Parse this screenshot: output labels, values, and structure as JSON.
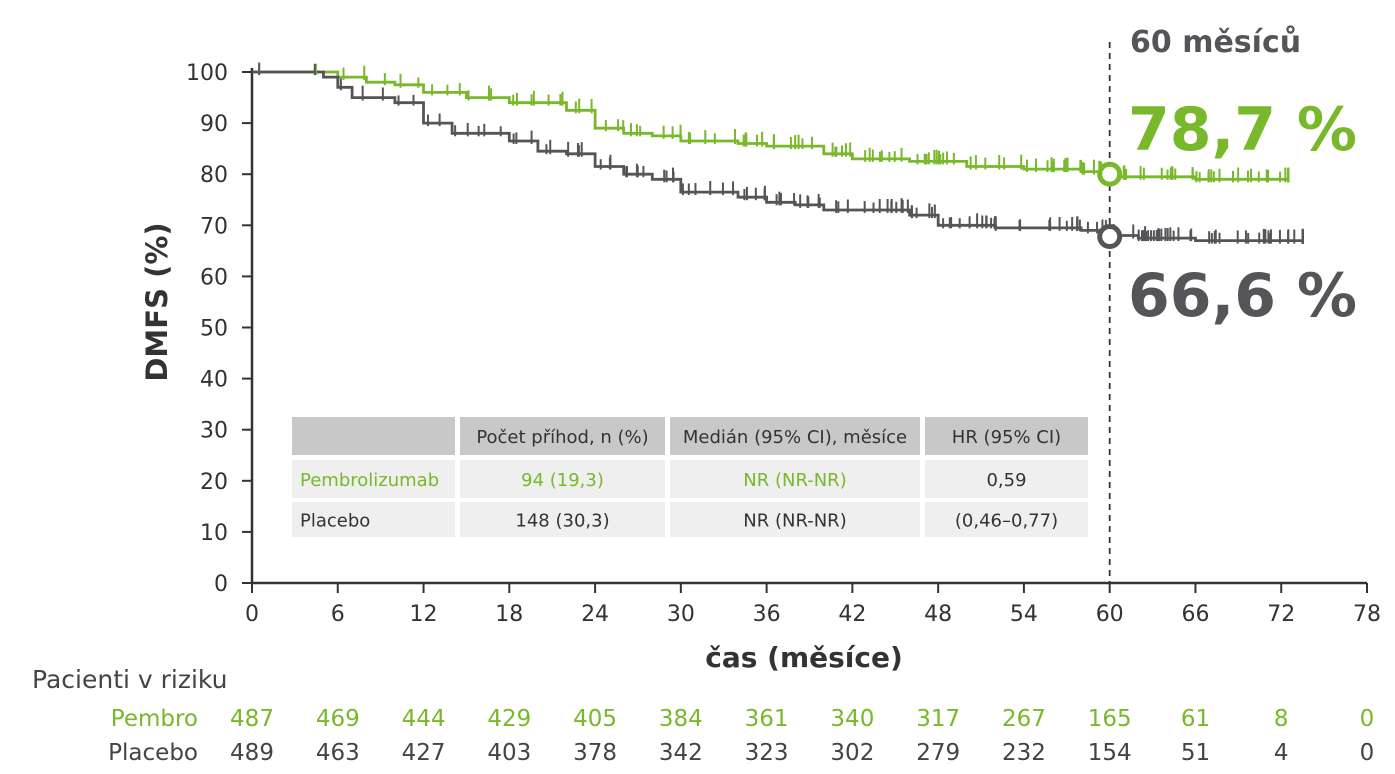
{
  "colors": {
    "pembro": "#78b82a",
    "placebo": "#555559",
    "axis": "#333333",
    "table_header": "#c8c8c8",
    "table_cell": "#efefef"
  },
  "chart_data": {
    "type": "line",
    "title": "",
    "xlabel": "čas (měsíce)",
    "ylabel": "DMFS (%)",
    "xlim": [
      0,
      78
    ],
    "ylim": [
      0,
      100
    ],
    "xticks": [
      0,
      6,
      12,
      18,
      24,
      30,
      36,
      42,
      48,
      54,
      60,
      66,
      72,
      78
    ],
    "yticks": [
      0,
      10,
      20,
      30,
      40,
      50,
      60,
      70,
      80,
      90,
      100
    ],
    "series": [
      {
        "name": "Pembrolizumab",
        "x": [
          0,
          3,
          6,
          8,
          10,
          12,
          15,
          18,
          22,
          24,
          26,
          28,
          30,
          34,
          36,
          40,
          42,
          46,
          48,
          50,
          54,
          58,
          60,
          66,
          72,
          72.5
        ],
        "y": [
          100,
          100,
          99,
          98,
          97.5,
          96,
          95,
          94,
          92.5,
          89,
          88,
          87.5,
          86.5,
          86,
          85.5,
          84,
          83,
          82.5,
          82.5,
          81.5,
          81,
          80.5,
          79.5,
          79,
          79,
          79
        ]
      },
      {
        "name": "Placebo",
        "x": [
          0,
          3,
          5,
          6,
          7,
          10,
          12,
          14,
          18,
          20,
          22,
          24,
          26,
          28,
          30,
          34,
          36,
          38,
          40,
          42,
          46,
          48,
          52,
          58,
          60,
          62,
          66,
          70,
          73.5
        ],
        "y": [
          100,
          100,
          99,
          97,
          95,
          94,
          90,
          88,
          86.5,
          84.5,
          84,
          81.5,
          80,
          79,
          76.5,
          75.5,
          74.5,
          74,
          73,
          73,
          72,
          70,
          69.5,
          69,
          68,
          67.5,
          67,
          67,
          67
        ]
      }
    ],
    "censor_ranges": [
      {
        "series": "Pembrolizumab",
        "from": 0.5,
        "to": 72.5,
        "count": 150
      },
      {
        "series": "Placebo",
        "from": 0.5,
        "to": 73.5,
        "count": 160
      }
    ],
    "landmark": {
      "x": 60,
      "label": "60 měsíců",
      "pembro_value": 78.7,
      "pembro_label": "78,7 %",
      "placebo_value": 66.6,
      "placebo_label": "66,6 %"
    },
    "table": {
      "headers": [
        "",
        "Počet příhod, n (%)",
        "Medián (95% CI), měsíce",
        "HR (95% CI)"
      ],
      "rows": [
        [
          "Pembrolizumab",
          "94 (19,3)",
          "NR (NR-NR)",
          "0,59"
        ],
        [
          "Placebo",
          "148 (30,3)",
          "NR (NR-NR)",
          "(0,46–0,77)"
        ]
      ]
    },
    "at_risk": {
      "title": "Pacienti v riziku",
      "times": [
        0,
        6,
        12,
        18,
        24,
        30,
        36,
        42,
        48,
        54,
        60,
        66,
        72,
        78
      ],
      "rows": [
        {
          "label": "Pembro",
          "values": [
            487,
            469,
            444,
            429,
            405,
            384,
            361,
            340,
            317,
            267,
            165,
            61,
            8,
            0
          ]
        },
        {
          "label": "Placebo",
          "values": [
            489,
            463,
            427,
            403,
            378,
            342,
            323,
            302,
            279,
            232,
            154,
            51,
            4,
            0
          ]
        }
      ]
    }
  }
}
